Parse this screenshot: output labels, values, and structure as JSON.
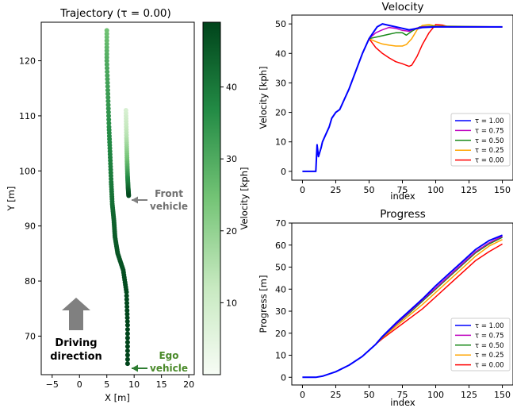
{
  "colors": {
    "tau_1_00": "#0000ff",
    "tau_0_75": "#bf00bf",
    "tau_0_50": "#1a8a1a",
    "tau_0_25": "#ffa500",
    "tau_0_00": "#ff0000",
    "front_arrow": "#808080",
    "ego_label": "#4a8a2a",
    "colormap": "Greens"
  },
  "chart_data": [
    {
      "type": "scatter",
      "title": "Trajectory (τ = 0.00)",
      "xlabel": "X [m]",
      "ylabel": "Y [m]",
      "xlim": [
        -7,
        21
      ],
      "ylim": [
        63,
        127
      ],
      "xticks": [
        -5,
        0,
        5,
        10,
        15,
        20
      ],
      "yticks": [
        70,
        80,
        90,
        100,
        110,
        120
      ],
      "grid": false,
      "colorbar": {
        "label": "Velocity [kph]",
        "range": [
          0,
          49
        ],
        "ticks": [
          10,
          20,
          30,
          40
        ],
        "colormap": "Greens"
      },
      "ego_path": [
        {
          "x": 8.8,
          "y": 65,
          "v": 49
        },
        {
          "x": 8.8,
          "y": 72,
          "v": 49
        },
        {
          "x": 8.6,
          "y": 78,
          "v": 48
        },
        {
          "x": 8.0,
          "y": 82,
          "v": 47
        },
        {
          "x": 7.0,
          "y": 85,
          "v": 46
        },
        {
          "x": 6.5,
          "y": 88,
          "v": 45
        },
        {
          "x": 6.3,
          "y": 91,
          "v": 44
        },
        {
          "x": 6.0,
          "y": 94,
          "v": 42
        },
        {
          "x": 5.8,
          "y": 98,
          "v": 40
        },
        {
          "x": 5.6,
          "y": 103,
          "v": 38
        },
        {
          "x": 5.4,
          "y": 108,
          "v": 36
        },
        {
          "x": 5.2,
          "y": 114,
          "v": 33
        },
        {
          "x": 5.0,
          "y": 120,
          "v": 30
        },
        {
          "x": 5.0,
          "y": 125.5,
          "v": 25
        }
      ],
      "front_path": [
        {
          "x": 8.5,
          "y": 111,
          "v": 8
        },
        {
          "x": 8.6,
          "y": 106,
          "v": 15
        },
        {
          "x": 8.7,
          "y": 102,
          "v": 25
        },
        {
          "x": 8.8,
          "y": 99,
          "v": 35
        },
        {
          "x": 8.9,
          "y": 97,
          "v": 42
        },
        {
          "x": 9.0,
          "y": 95.5,
          "v": 48
        }
      ],
      "annotations": [
        {
          "text_lines": [
            "Front",
            "vehicle"
          ],
          "target": {
            "x": 9.3,
            "y": 95.3
          },
          "color": "front_arrow"
        },
        {
          "text_lines": [
            "Ego",
            "vehicle"
          ],
          "target": {
            "x": 9.3,
            "y": 65.3
          },
          "color": "ego_label"
        },
        {
          "text_lines": [
            "Driving",
            "direction"
          ],
          "color": "#000000"
        }
      ]
    },
    {
      "type": "line",
      "title": "Velocity",
      "xlabel": "index",
      "ylabel": "Velocity [kph]",
      "xlim": [
        -8,
        158
      ],
      "ylim": [
        -3,
        53
      ],
      "xticks": [
        0,
        25,
        50,
        75,
        100,
        125,
        150
      ],
      "yticks": [
        0,
        10,
        20,
        30,
        40,
        50
      ],
      "legend_position": "lower-right",
      "series": [
        {
          "name": "τ = 1.00",
          "color": "tau_1_00",
          "points": [
            [
              0,
              0
            ],
            [
              10,
              0
            ],
            [
              11,
              9
            ],
            [
              12,
              5
            ],
            [
              14,
              8
            ],
            [
              15,
              10
            ],
            [
              17,
              12
            ],
            [
              20,
              15
            ],
            [
              22,
              18
            ],
            [
              25,
              20
            ],
            [
              28,
              21
            ],
            [
              30,
              23
            ],
            [
              35,
              28
            ],
            [
              40,
              34
            ],
            [
              45,
              40
            ],
            [
              50,
              45
            ],
            [
              53,
              47
            ],
            [
              56,
              49
            ],
            [
              60,
              50
            ],
            [
              65,
              49.5
            ],
            [
              70,
              49
            ],
            [
              75,
              48.5
            ],
            [
              80,
              48
            ],
            [
              90,
              48.8
            ],
            [
              100,
              49
            ],
            [
              125,
              49
            ],
            [
              150,
              49
            ]
          ]
        },
        {
          "name": "τ = 0.75",
          "color": "tau_0_75",
          "points": [
            [
              50,
              45
            ],
            [
              55,
              47
            ],
            [
              60,
              48
            ],
            [
              65,
              48.8
            ],
            [
              70,
              48.5
            ],
            [
              75,
              47.8
            ],
            [
              80,
              47.5
            ],
            [
              85,
              48.5
            ],
            [
              90,
              49
            ],
            [
              100,
              49
            ],
            [
              150,
              49
            ]
          ]
        },
        {
          "name": "τ = 0.50",
          "color": "tau_0_50",
          "points": [
            [
              50,
              45
            ],
            [
              55,
              45.5
            ],
            [
              60,
              46
            ],
            [
              65,
              46.5
            ],
            [
              70,
              47
            ],
            [
              75,
              47
            ],
            [
              78,
              46.2
            ],
            [
              82,
              47.5
            ],
            [
              88,
              49
            ],
            [
              95,
              49.2
            ],
            [
              150,
              49
            ]
          ]
        },
        {
          "name": "τ = 0.25",
          "color": "tau_0_25",
          "points": [
            [
              50,
              45
            ],
            [
              55,
              44
            ],
            [
              60,
              43.2
            ],
            [
              65,
              42.8
            ],
            [
              70,
              42.5
            ],
            [
              75,
              42.5
            ],
            [
              78,
              43
            ],
            [
              82,
              45
            ],
            [
              86,
              48
            ],
            [
              90,
              49.5
            ],
            [
              95,
              49.8
            ],
            [
              100,
              49.3
            ],
            [
              150,
              49
            ]
          ]
        },
        {
          "name": "τ = 0.00",
          "color": "tau_0_00",
          "points": [
            [
              50,
              45
            ],
            [
              55,
              42
            ],
            [
              60,
              40
            ],
            [
              65,
              38.5
            ],
            [
              70,
              37.2
            ],
            [
              75,
              36.5
            ],
            [
              80,
              35.6
            ],
            [
              82,
              36
            ],
            [
              86,
              39
            ],
            [
              90,
              43
            ],
            [
              95,
              47
            ],
            [
              100,
              49.8
            ],
            [
              105,
              49.6
            ],
            [
              110,
              49
            ],
            [
              150,
              49
            ]
          ]
        }
      ]
    },
    {
      "type": "line",
      "title": "Progress",
      "xlabel": "index",
      "ylabel": "Progress [m]",
      "xlim": [
        -8,
        158
      ],
      "ylim": [
        -3.5,
        70
      ],
      "xticks": [
        0,
        25,
        50,
        75,
        100,
        125,
        150
      ],
      "yticks": [
        0,
        10,
        20,
        30,
        40,
        50,
        60,
        70
      ],
      "legend_position": "lower-right",
      "series": [
        {
          "name": "τ = 1.00",
          "color": "tau_1_00",
          "points": [
            [
              0,
              0
            ],
            [
              10,
              0
            ],
            [
              15,
              0.5
            ],
            [
              25,
              2.5
            ],
            [
              35,
              5.5
            ],
            [
              45,
              9.5
            ],
            [
              55,
              15
            ],
            [
              60,
              18.5
            ],
            [
              70,
              24.5
            ],
            [
              80,
              30
            ],
            [
              90,
              35.5
            ],
            [
              100,
              41.5
            ],
            [
              110,
              47
            ],
            [
              120,
              52.5
            ],
            [
              130,
              58
            ],
            [
              140,
              62
            ],
            [
              150,
              64.5
            ]
          ]
        },
        {
          "name": "τ = 0.75",
          "color": "tau_0_75",
          "points": [
            [
              55,
              15
            ],
            [
              60,
              18.3
            ],
            [
              70,
              24
            ],
            [
              80,
              29.5
            ],
            [
              90,
              35
            ],
            [
              100,
              40.5
            ],
            [
              110,
              46
            ],
            [
              120,
              51.5
            ],
            [
              130,
              57
            ],
            [
              140,
              61
            ],
            [
              150,
              64
            ]
          ]
        },
        {
          "name": "τ = 0.50",
          "color": "tau_0_50",
          "points": [
            [
              55,
              15
            ],
            [
              60,
              18.2
            ],
            [
              70,
              23.8
            ],
            [
              80,
              29
            ],
            [
              90,
              34.5
            ],
            [
              100,
              40
            ],
            [
              110,
              45.5
            ],
            [
              120,
              51
            ],
            [
              130,
              56.5
            ],
            [
              140,
              60.5
            ],
            [
              150,
              63.5
            ]
          ]
        },
        {
          "name": "τ = 0.25",
          "color": "tau_0_25",
          "points": [
            [
              55,
              15
            ],
            [
              60,
              18
            ],
            [
              70,
              23
            ],
            [
              80,
              28
            ],
            [
              90,
              33
            ],
            [
              100,
              38.5
            ],
            [
              110,
              44
            ],
            [
              120,
              49.5
            ],
            [
              130,
              55
            ],
            [
              140,
              59.5
            ],
            [
              150,
              62.5
            ]
          ]
        },
        {
          "name": "τ = 0.00",
          "color": "tau_0_00",
          "points": [
            [
              55,
              15
            ],
            [
              60,
              17.5
            ],
            [
              70,
              22
            ],
            [
              80,
              26.5
            ],
            [
              90,
              31
            ],
            [
              100,
              36.5
            ],
            [
              110,
              42
            ],
            [
              120,
              47.5
            ],
            [
              130,
              53
            ],
            [
              140,
              57
            ],
            [
              150,
              60.5
            ]
          ]
        }
      ]
    }
  ]
}
